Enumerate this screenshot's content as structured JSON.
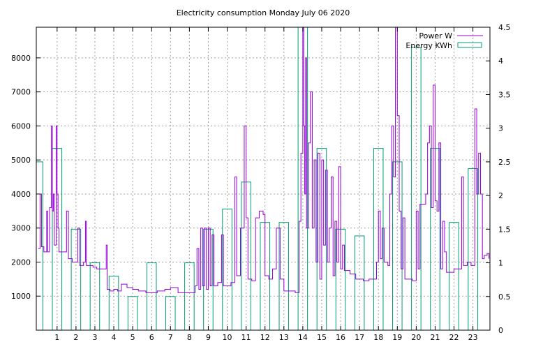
{
  "chart_data": {
    "type": "bar+line",
    "title": "Electricity consumption Monday July 06 2020",
    "x_ticks": [
      "1",
      "2",
      "3",
      "4",
      "5",
      "6",
      "7",
      "8",
      "9",
      "10",
      "11",
      "12",
      "13",
      "14",
      "15",
      "16",
      "17",
      "18",
      "19",
      "20",
      "21",
      "22",
      "23"
    ],
    "xlim": [
      -0.1,
      23.9
    ],
    "y_left": {
      "ticks": [
        "1000",
        "2000",
        "3000",
        "4000",
        "5000",
        "6000",
        "7000",
        "8000"
      ],
      "ylim": [
        0,
        8900
      ]
    },
    "y_right": {
      "ticks": [
        "0",
        "0.5",
        "1",
        "1.5",
        "2",
        "2.5",
        "3",
        "3.5",
        "4",
        "4.5"
      ],
      "ylim": [
        0,
        4.5
      ]
    },
    "grid": true,
    "legend_position": "top-right",
    "series": [
      {
        "name": "Power W",
        "kind": "line",
        "color": "#9400d3",
        "points": [
          [
            0.0,
            2400
          ],
          [
            0.1,
            4000
          ],
          [
            0.18,
            2450
          ],
          [
            0.3,
            2300
          ],
          [
            0.45,
            3500
          ],
          [
            0.5,
            2300
          ],
          [
            0.6,
            3600
          ],
          [
            0.7,
            6000
          ],
          [
            0.75,
            3500
          ],
          [
            0.8,
            4000
          ],
          [
            0.85,
            2500
          ],
          [
            0.95,
            6000
          ],
          [
            1.0,
            4000
          ],
          [
            1.05,
            3000
          ],
          [
            1.1,
            2300
          ],
          [
            1.4,
            2300
          ],
          [
            1.5,
            3500
          ],
          [
            1.6,
            2100
          ],
          [
            1.8,
            2000
          ],
          [
            2.0,
            2000
          ],
          [
            2.1,
            3000
          ],
          [
            2.2,
            1900
          ],
          [
            2.4,
            2000
          ],
          [
            2.5,
            3200
          ],
          [
            2.55,
            1900
          ],
          [
            2.7,
            1900
          ],
          [
            2.9,
            1850
          ],
          [
            3.1,
            1800
          ],
          [
            3.4,
            1800
          ],
          [
            3.6,
            2500
          ],
          [
            3.65,
            1200
          ],
          [
            3.8,
            1150
          ],
          [
            4.0,
            1200
          ],
          [
            4.2,
            1150
          ],
          [
            4.4,
            1350
          ],
          [
            4.7,
            1250
          ],
          [
            5.0,
            1200
          ],
          [
            5.3,
            1150
          ],
          [
            5.7,
            1100
          ],
          [
            6.0,
            1100
          ],
          [
            6.3,
            1150
          ],
          [
            6.7,
            1200
          ],
          [
            7.0,
            1250
          ],
          [
            7.4,
            1100
          ],
          [
            7.8,
            1100
          ],
          [
            8.1,
            1100
          ],
          [
            8.3,
            1300
          ],
          [
            8.4,
            2400
          ],
          [
            8.5,
            1200
          ],
          [
            8.6,
            3000
          ],
          [
            8.7,
            1300
          ],
          [
            8.8,
            3000
          ],
          [
            8.9,
            1200
          ],
          [
            9.0,
            3000
          ],
          [
            9.1,
            1300
          ],
          [
            9.2,
            2800
          ],
          [
            9.3,
            1300
          ],
          [
            9.5,
            1400
          ],
          [
            9.7,
            2800
          ],
          [
            9.8,
            1300
          ],
          [
            10.0,
            1300
          ],
          [
            10.2,
            1400
          ],
          [
            10.4,
            4500
          ],
          [
            10.5,
            1600
          ],
          [
            10.7,
            3000
          ],
          [
            10.9,
            6000
          ],
          [
            11.0,
            3300
          ],
          [
            11.1,
            1500
          ],
          [
            11.3,
            1450
          ],
          [
            11.5,
            3300
          ],
          [
            11.7,
            3500
          ],
          [
            11.9,
            3400
          ],
          [
            12.0,
            1600
          ],
          [
            12.2,
            1500
          ],
          [
            12.4,
            1800
          ],
          [
            12.6,
            3000
          ],
          [
            12.8,
            1500
          ],
          [
            13.0,
            1150
          ],
          [
            13.3,
            1150
          ],
          [
            13.6,
            1100
          ],
          [
            13.8,
            3200
          ],
          [
            13.9,
            5200
          ],
          [
            14.0,
            8900
          ],
          [
            14.05,
            6000
          ],
          [
            14.1,
            4000
          ],
          [
            14.15,
            8000
          ],
          [
            14.2,
            3000
          ],
          [
            14.3,
            5500
          ],
          [
            14.4,
            7000
          ],
          [
            14.5,
            3000
          ],
          [
            14.6,
            5000
          ],
          [
            14.7,
            2000
          ],
          [
            14.8,
            5200
          ],
          [
            14.9,
            1500
          ],
          [
            15.0,
            5000
          ],
          [
            15.1,
            2500
          ],
          [
            15.2,
            4700
          ],
          [
            15.3,
            2000
          ],
          [
            15.4,
            3000
          ],
          [
            15.5,
            4500
          ],
          [
            15.6,
            1600
          ],
          [
            15.7,
            3200
          ],
          [
            15.8,
            2000
          ],
          [
            15.9,
            4800
          ],
          [
            16.0,
            1800
          ],
          [
            16.1,
            2500
          ],
          [
            16.2,
            1750
          ],
          [
            16.5,
            1650
          ],
          [
            16.8,
            1500
          ],
          [
            17.0,
            1500
          ],
          [
            17.2,
            1450
          ],
          [
            17.5,
            1500
          ],
          [
            17.7,
            1500
          ],
          [
            17.9,
            2000
          ],
          [
            18.0,
            3500
          ],
          [
            18.1,
            2100
          ],
          [
            18.2,
            3000
          ],
          [
            18.3,
            2000
          ],
          [
            18.5,
            1900
          ],
          [
            18.6,
            4000
          ],
          [
            18.7,
            6000
          ],
          [
            18.8,
            4500
          ],
          [
            18.9,
            8900
          ],
          [
            19.0,
            6300
          ],
          [
            19.1,
            3500
          ],
          [
            19.2,
            1800
          ],
          [
            19.3,
            3300
          ],
          [
            19.4,
            1500
          ],
          [
            19.6,
            1500
          ],
          [
            19.8,
            1450
          ],
          [
            20.0,
            3500
          ],
          [
            20.1,
            1800
          ],
          [
            20.2,
            3700
          ],
          [
            20.4,
            3700
          ],
          [
            20.5,
            4000
          ],
          [
            20.6,
            5500
          ],
          [
            20.7,
            6000
          ],
          [
            20.8,
            3600
          ],
          [
            20.9,
            7200
          ],
          [
            21.0,
            3800
          ],
          [
            21.1,
            3500
          ],
          [
            21.2,
            5500
          ],
          [
            21.3,
            1800
          ],
          [
            21.4,
            3200
          ],
          [
            21.5,
            2300
          ],
          [
            21.6,
            1700
          ],
          [
            21.8,
            1700
          ],
          [
            22.0,
            1800
          ],
          [
            22.2,
            1800
          ],
          [
            22.4,
            4500
          ],
          [
            22.5,
            1900
          ],
          [
            22.7,
            2000
          ],
          [
            22.9,
            1900
          ],
          [
            23.1,
            6500
          ],
          [
            23.2,
            4000
          ],
          [
            23.3,
            5200
          ],
          [
            23.4,
            4000
          ],
          [
            23.5,
            2100
          ],
          [
            23.6,
            2200
          ],
          [
            23.75,
            2250
          ],
          [
            23.85,
            2100
          ]
        ]
      },
      {
        "name": "Energy KWh",
        "kind": "bar",
        "color": "#009e73",
        "hours": [
          0,
          1,
          2,
          3,
          4,
          5,
          6,
          7,
          8,
          9,
          10,
          11,
          12,
          13,
          14,
          15,
          16,
          17,
          18,
          19,
          20,
          21,
          22,
          23
        ],
        "values": [
          2.5,
          2.7,
          1.5,
          1.0,
          0.8,
          0.5,
          1.0,
          0.5,
          1.0,
          1.5,
          1.8,
          2.2,
          1.6,
          1.6,
          4.5,
          2.7,
          1.5,
          1.4,
          2.7,
          2.5,
          4.2,
          2.7,
          1.6,
          2.4
        ]
      }
    ]
  }
}
